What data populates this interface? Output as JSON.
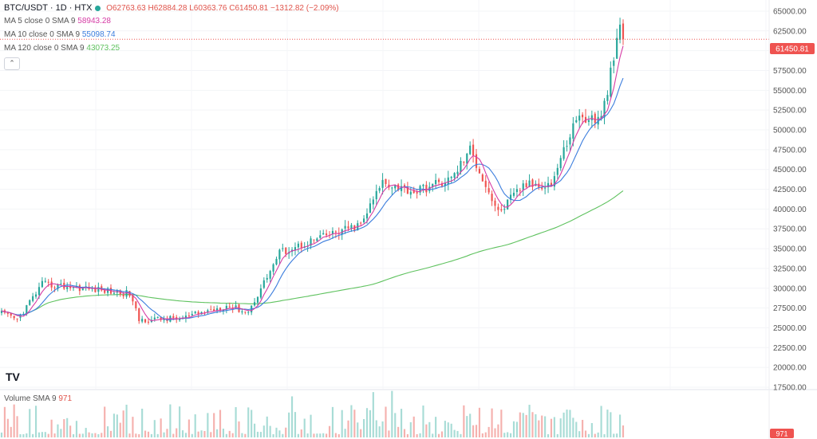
{
  "header": {
    "symbol": "BTC/USDT · 1D · HTX",
    "open": "O62763.63",
    "high": "H62884.28",
    "low": "L60363.76",
    "close": "C61450.81",
    "change": "−1312.82 (−2.09%)"
  },
  "indicators": [
    {
      "label": "MA 5 close 0 SMA 9",
      "value": "58943.28",
      "color": "#d63ba5"
    },
    {
      "label": "MA 10 close 0 SMA 9",
      "value": "55098.74",
      "color": "#3b7ddd"
    },
    {
      "label": "MA 120 close 0 SMA 9",
      "value": "43073.25",
      "color": "#5fc25f"
    }
  ],
  "volume": {
    "label": "Volume SMA 9",
    "value": "971",
    "axis_label": "971"
  },
  "price_tag": "61450.81",
  "logo": "TV",
  "colors": {
    "up": "#26a69a",
    "down": "#ef5350",
    "volume_up": "#a8dcd6",
    "volume_down": "#f5b1ae",
    "ma5": "#d63ba5",
    "ma10": "#3b7ddd",
    "ma120": "#5fc25f"
  },
  "chart_data": {
    "type": "candlestick",
    "y_ticks": [
      "65000.00",
      "62500.00",
      "60000.00",
      "57500.00",
      "55000.00",
      "52500.00",
      "50000.00",
      "47500.00",
      "45000.00",
      "42500.00",
      "40000.00",
      "37500.00",
      "35000.00",
      "32500.00",
      "30000.00",
      "27500.00",
      "25000.00",
      "22500.00",
      "20000.00",
      "17500.00"
    ],
    "ylim": [
      17500,
      66000
    ],
    "segments": [
      {
        "count": 6,
        "start": 27000,
        "end": 26000
      },
      {
        "count": 8,
        "start": 26000,
        "end": 30500
      },
      {
        "count": 14,
        "start": 30500,
        "end": 30000
      },
      {
        "count": 14,
        "start": 30000,
        "end": 29300
      },
      {
        "count": 3,
        "start": 29300,
        "end": 26000
      },
      {
        "count": 14,
        "start": 26000,
        "end": 26200
      },
      {
        "count": 14,
        "start": 26200,
        "end": 27800
      },
      {
        "count": 7,
        "start": 27800,
        "end": 27000
      },
      {
        "count": 10,
        "start": 27000,
        "end": 34500
      },
      {
        "count": 14,
        "start": 34500,
        "end": 36500
      },
      {
        "count": 12,
        "start": 36500,
        "end": 38000
      },
      {
        "count": 7,
        "start": 38000,
        "end": 43500
      },
      {
        "count": 10,
        "start": 43500,
        "end": 42200
      },
      {
        "count": 12,
        "start": 42200,
        "end": 43800
      },
      {
        "count": 6,
        "start": 43800,
        "end": 47500
      },
      {
        "count": 9,
        "start": 47500,
        "end": 39500
      },
      {
        "count": 8,
        "start": 39500,
        "end": 43000
      },
      {
        "count": 9,
        "start": 43000,
        "end": 43200
      },
      {
        "count": 8,
        "start": 43200,
        "end": 51500
      },
      {
        "count": 8,
        "start": 51500,
        "end": 51300
      },
      {
        "count": 6,
        "start": 51300,
        "end": 62800
      },
      {
        "count": 1,
        "start": 62800,
        "end": 61450.81
      }
    ],
    "last_close": 61450.81
  }
}
